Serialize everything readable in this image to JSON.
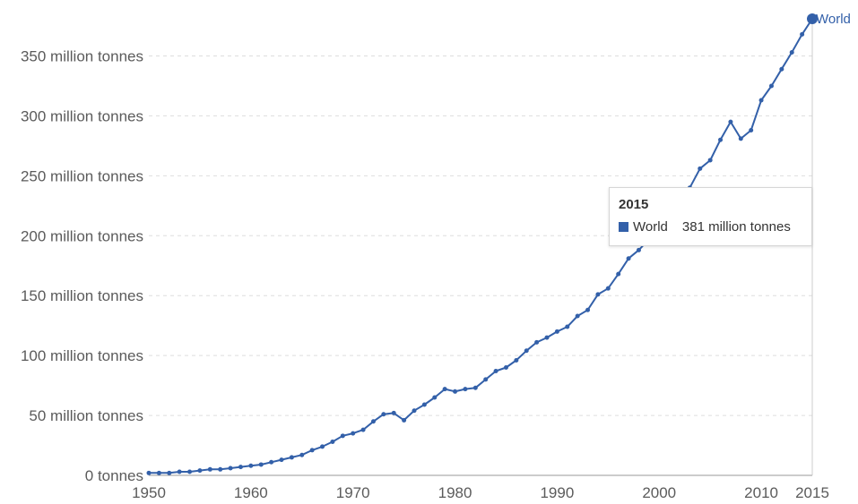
{
  "chart_data": {
    "type": "line",
    "title": "",
    "xlabel": "",
    "ylabel": "",
    "xlim": [
      1950,
      2015
    ],
    "ylim": [
      0,
      381
    ],
    "grid": "horizontal dashed",
    "x_ticks": [
      1950,
      1960,
      1970,
      1980,
      1990,
      2000,
      2010,
      2015
    ],
    "x_tick_labels": [
      "1950",
      "1960",
      "1970",
      "1980",
      "1990",
      "2000",
      "2010",
      "2015"
    ],
    "y_ticks": [
      0,
      50,
      100,
      150,
      200,
      250,
      300,
      350
    ],
    "y_tick_labels": [
      "0 tonnes",
      "50 million tonnes",
      "100 million tonnes",
      "150 million tonnes",
      "200 million tonnes",
      "250 million tonnes",
      "300 million tonnes",
      "350 million tonnes"
    ],
    "series": [
      {
        "name": "World",
        "color": "#3360a9",
        "x": [
          1950,
          1951,
          1952,
          1953,
          1954,
          1955,
          1956,
          1957,
          1958,
          1959,
          1960,
          1961,
          1962,
          1963,
          1964,
          1965,
          1966,
          1967,
          1968,
          1969,
          1970,
          1971,
          1972,
          1973,
          1974,
          1975,
          1976,
          1977,
          1978,
          1979,
          1980,
          1981,
          1982,
          1983,
          1984,
          1985,
          1986,
          1987,
          1988,
          1989,
          1990,
          1991,
          1992,
          1993,
          1994,
          1995,
          1996,
          1997,
          1998,
          1999,
          2000,
          2001,
          2002,
          2003,
          2004,
          2005,
          2006,
          2007,
          2008,
          2009,
          2010,
          2011,
          2012,
          2013,
          2014,
          2015
        ],
        "values": [
          2,
          2,
          2,
          3,
          3,
          4,
          5,
          5,
          6,
          7,
          8,
          9,
          11,
          13,
          15,
          17,
          21,
          24,
          28,
          33,
          35,
          38,
          45,
          51,
          52,
          46,
          54,
          59,
          65,
          72,
          70,
          72,
          73,
          80,
          87,
          90,
          96,
          104,
          111,
          115,
          120,
          124,
          133,
          138,
          151,
          156,
          168,
          181,
          188,
          197,
          213,
          222,
          231,
          240,
          256,
          263,
          280,
          295,
          281,
          288,
          313,
          325,
          339,
          353,
          368,
          381
        ]
      }
    ],
    "end_label": "World",
    "tooltip": {
      "year": "2015",
      "series": "World",
      "value_text": "381 million tonnes",
      "swatch_color": "#3360a9"
    }
  }
}
